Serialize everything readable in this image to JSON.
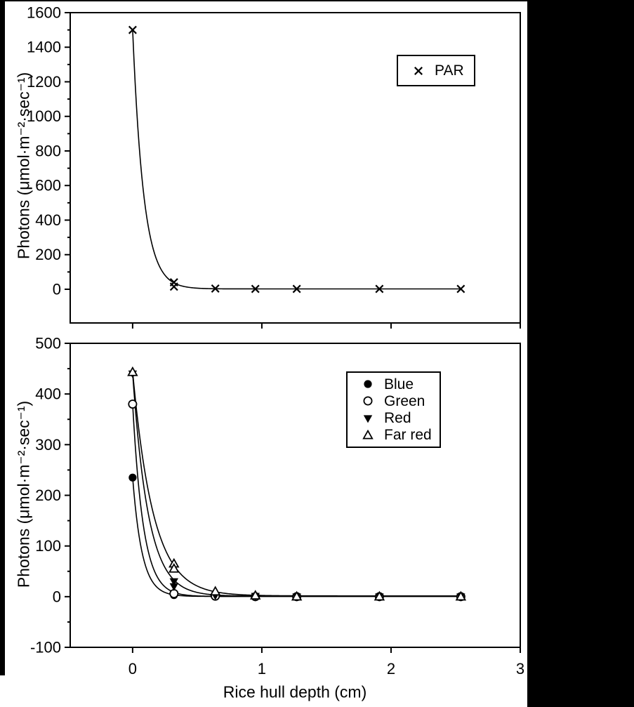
{
  "frame": {
    "background": "#ffffff",
    "bar_color": "#000000",
    "ink_color": "#000000"
  },
  "chart_data": [
    {
      "type": "scatter",
      "panel": "top",
      "title": "",
      "ylabel": "Photons (μmol·m⁻²·sec⁻¹)",
      "ylim": [
        -195,
        1600
      ],
      "y_tick_label_range": [
        0,
        1600
      ],
      "ytick_major": 200,
      "ytick_minor": 100,
      "xlim": [
        -0.483,
        3
      ],
      "xticks": [
        0,
        1,
        2,
        3
      ],
      "show_x_tick_labels": false,
      "grid": false,
      "legend": {
        "position": "upper-right",
        "entries": [
          {
            "marker": "x",
            "label": "PAR"
          }
        ]
      },
      "series": [
        {
          "name": "PAR",
          "marker": "x",
          "color": "#000000",
          "curve_fit": {
            "model": "exponential-decay",
            "a": 1500,
            "k": 11.75,
            "c": 2,
            "x_end": 2.54
          },
          "points": [
            [
              0,
              1500
            ],
            [
              0.32,
              40
            ],
            [
              0.32,
              15
            ],
            [
              0.64,
              4
            ],
            [
              0.95,
              2
            ],
            [
              1.27,
              2
            ],
            [
              1.91,
              2
            ],
            [
              2.54,
              2
            ]
          ]
        }
      ]
    },
    {
      "type": "scatter",
      "panel": "bottom",
      "title": "",
      "xlabel": "Rice hull depth (cm)",
      "ylabel": "Photons (μmol·m⁻²·sec⁻¹)",
      "ylim": [
        -100,
        500
      ],
      "y_tick_label_range": [
        -100,
        500
      ],
      "ytick_major": 100,
      "ytick_minor": 50,
      "xlim": [
        -0.483,
        3
      ],
      "xticks": [
        0,
        1,
        2,
        3
      ],
      "show_x_tick_labels": true,
      "grid": false,
      "legend": {
        "position": "upper-right",
        "entries": [
          {
            "marker": "circle-filled",
            "label": "Blue"
          },
          {
            "marker": "circle-open",
            "label": "Green"
          },
          {
            "marker": "triangle-down-filled",
            "label": "Red"
          },
          {
            "marker": "triangle-up-open",
            "label": "Far red"
          }
        ]
      },
      "series": [
        {
          "name": "Blue",
          "marker": "circle-filled",
          "color": "#000000",
          "curve_fit": {
            "model": "exponential-decay",
            "a": 235,
            "k": 13.6,
            "c": 0.5,
            "x_end": 2.54
          },
          "points": [
            [
              0,
              235
            ],
            [
              0.32,
              3
            ],
            [
              0.64,
              1
            ],
            [
              0.95,
              0
            ],
            [
              1.27,
              0
            ],
            [
              1.91,
              0
            ],
            [
              2.54,
              0
            ]
          ]
        },
        {
          "name": "Green",
          "marker": "circle-open",
          "color": "#000000",
          "curve_fit": {
            "model": "exponential-decay",
            "a": 380,
            "k": 12,
            "c": 0.5,
            "x_end": 2.54
          },
          "points": [
            [
              0,
              380
            ],
            [
              0.32,
              6
            ],
            [
              0.64,
              1
            ],
            [
              0.95,
              0
            ],
            [
              1.27,
              0
            ],
            [
              1.91,
              0
            ],
            [
              2.54,
              0
            ]
          ]
        },
        {
          "name": "Red",
          "marker": "triangle-down-filled",
          "color": "#000000",
          "curve_fit": {
            "model": "exponential-decay",
            "a": 440,
            "k": 8.2,
            "c": 1,
            "x_end": 2.54
          },
          "points": [
            [
              0,
              440
            ],
            [
              0.32,
              30
            ],
            [
              0.32,
              20
            ],
            [
              0.64,
              2
            ],
            [
              0.95,
              1
            ],
            [
              1.27,
              0
            ],
            [
              1.91,
              0
            ],
            [
              2.54,
              0
            ]
          ]
        },
        {
          "name": "Far red",
          "marker": "triangle-up-open",
          "color": "#000000",
          "curve_fit": {
            "model": "exponential-decay",
            "a": 443,
            "k": 6.25,
            "c": 1.5,
            "x_end": 2.54
          },
          "points": [
            [
              0,
              443
            ],
            [
              0.32,
              65
            ],
            [
              0.32,
              55
            ],
            [
              0.64,
              10
            ],
            [
              0.95,
              2
            ],
            [
              1.27,
              0
            ],
            [
              1.91,
              0
            ],
            [
              2.54,
              0
            ]
          ]
        }
      ]
    }
  ]
}
